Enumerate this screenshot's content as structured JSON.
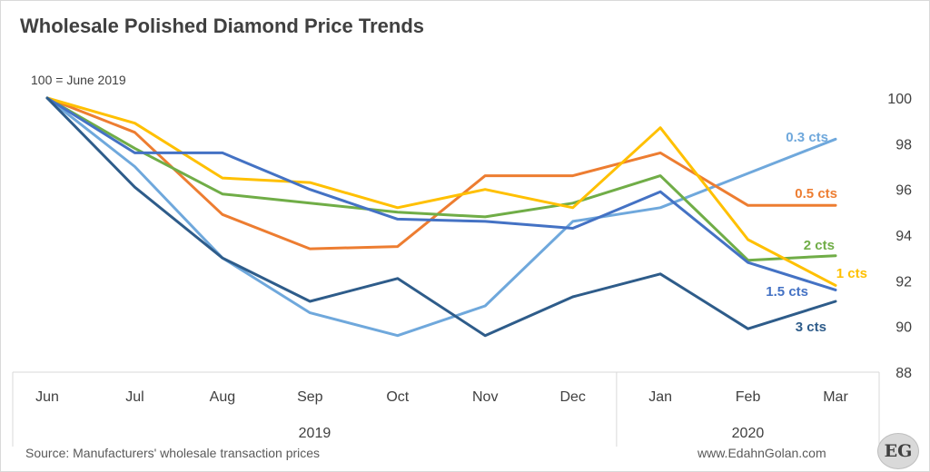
{
  "title": "Wholesale Polished Diamond Price Trends",
  "index_note": "100 = June 2019",
  "source": "Source: Manufacturers' wholesale transaction prices",
  "website": "www.EdahnGolan.com",
  "logo_text": "EG",
  "chart_data": {
    "type": "line",
    "categories": [
      "Jun",
      "Jul",
      "Aug",
      "Sep",
      "Oct",
      "Nov",
      "Dec",
      "Jan",
      "Feb",
      "Mar"
    ],
    "year_groups": [
      {
        "label": "2019",
        "from": "Jun",
        "to": "Dec"
      },
      {
        "label": "2020",
        "from": "Jan",
        "to": "Mar"
      }
    ],
    "ylim": [
      88,
      100
    ],
    "yticks": [
      88,
      90,
      92,
      94,
      96,
      98,
      100
    ],
    "y_axis_side": "right",
    "grid": false,
    "legend": "none (labels at line ends)",
    "series": [
      {
        "name": "0.3 cts",
        "color": "#6fa8dc",
        "values": [
          100,
          97.0,
          93.0,
          90.6,
          89.6,
          90.9,
          94.6,
          95.2,
          96.7,
          98.2
        ]
      },
      {
        "name": "0.5 cts",
        "color": "#ed7d31",
        "values": [
          100,
          98.5,
          94.9,
          93.4,
          93.5,
          96.6,
          96.6,
          97.6,
          95.3,
          95.3
        ]
      },
      {
        "name": "2 cts",
        "color": "#70ad47",
        "values": [
          100,
          97.8,
          95.8,
          95.4,
          95.0,
          94.8,
          95.4,
          96.6,
          92.9,
          93.1
        ]
      },
      {
        "name": "1 cts",
        "color": "#ffc000",
        "values": [
          100,
          98.9,
          96.5,
          96.3,
          95.2,
          96.0,
          95.2,
          98.7,
          93.8,
          91.8
        ]
      },
      {
        "name": "1.5 cts",
        "color": "#4472c4",
        "values": [
          100,
          97.6,
          97.6,
          96.0,
          94.7,
          94.6,
          94.3,
          95.9,
          92.8,
          91.6
        ]
      },
      {
        "name": "3 cts",
        "color": "#2e5c8a",
        "values": [
          100,
          96.1,
          93.0,
          91.1,
          92.1,
          89.6,
          91.3,
          92.3,
          89.9,
          91.1
        ]
      }
    ]
  }
}
